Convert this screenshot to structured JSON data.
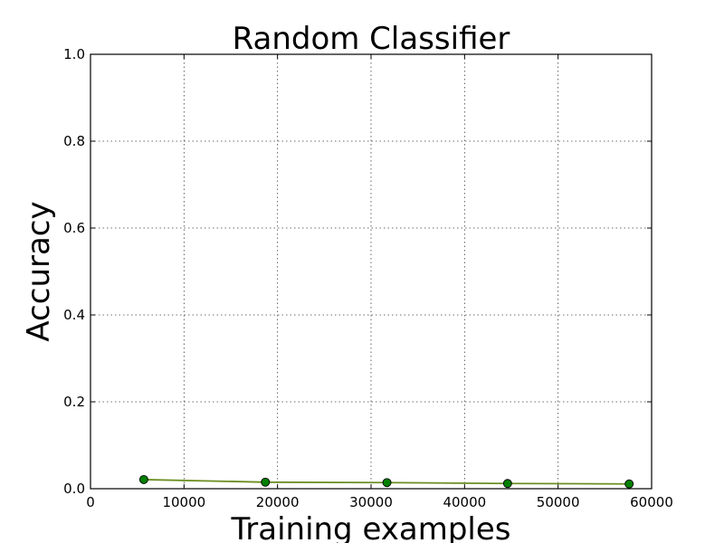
{
  "chart_data": {
    "type": "line",
    "title": "Random Classifier",
    "xlabel": "Training examples",
    "ylabel": "Accuracy",
    "xlim": [
      0,
      60000
    ],
    "ylim": [
      0,
      1.0
    ],
    "x_ticks": [
      0,
      10000,
      20000,
      30000,
      40000,
      50000,
      60000
    ],
    "y_ticks": [
      0.0,
      0.2,
      0.4,
      0.6,
      0.8,
      1.0
    ],
    "x_tick_labels": [
      "0",
      "10000",
      "20000",
      "30000",
      "40000",
      "50000",
      "60000"
    ],
    "y_tick_labels": [
      "0.0",
      "0.2",
      "0.4",
      "0.6",
      "0.8",
      "1.0"
    ],
    "grid": true,
    "series": [
      {
        "x": [
          5700,
          18700,
          31700,
          44600,
          57600
        ],
        "y": [
          0.021,
          0.015,
          0.014,
          0.012,
          0.011
        ],
        "line_color": "#6b8e23",
        "marker_color": "#008000"
      }
    ]
  }
}
